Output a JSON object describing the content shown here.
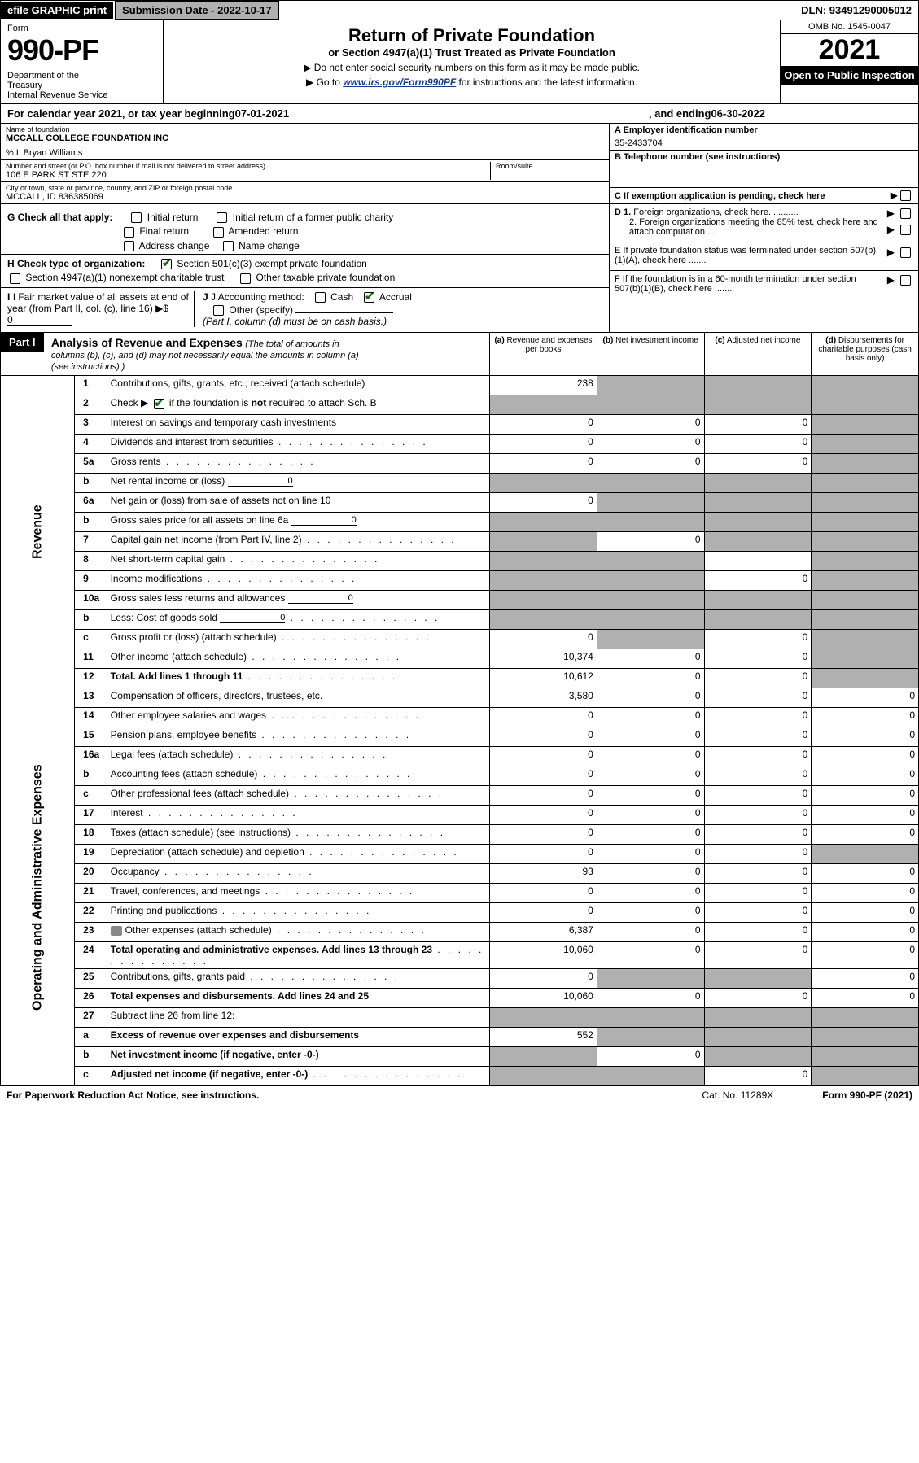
{
  "topbar": {
    "efile": "efile GRAPHIC print",
    "subdate_label": "Submission Date - 2022-10-17",
    "dln": "DLN: 93491290005012"
  },
  "header": {
    "form_label": "Form",
    "form_number": "990-PF",
    "dept": "Department of the Treasury\nInternal Revenue Service",
    "title": "Return of Private Foundation",
    "subtitle": "or Section 4947(a)(1) Trust Treated as Private Foundation",
    "note1": "▶ Do not enter social security numbers on this form as it may be made public.",
    "note2_prefix": "▶ Go to ",
    "note2_link": "www.irs.gov/Form990PF",
    "note2_suffix": " for instructions and the latest information.",
    "omb": "OMB No. 1545-0047",
    "year": "2021",
    "open": "Open to Public Inspection"
  },
  "calendar": {
    "prefix": "For calendar year 2021, or tax year beginning ",
    "begin": "07-01-2021",
    "mid": " , and ending ",
    "end": "06-30-2022"
  },
  "entity": {
    "name_lbl": "Name of foundation",
    "name_val": "MCCALL COLLEGE FOUNDATION INC",
    "care_of": "% L Bryan Williams",
    "street_lbl": "Number and street (or P.O. box number if mail is not delivered to street address)",
    "street_val": "106 E PARK ST STE 220",
    "room_lbl": "Room/suite",
    "city_lbl": "City or town, state or province, country, and ZIP or foreign postal code",
    "city_val": "MCCALL, ID  836385069",
    "a_lbl": "A Employer identification number",
    "a_val": "35-2433704",
    "b_lbl": "B Telephone number (see instructions)",
    "c_lbl": "C If exemption application is pending, check here",
    "d1": "D 1. Foreign organizations, check here............",
    "d2": "2. Foreign organizations meeting the 85% test, check here and attach computation ...",
    "e": "E  If private foundation status was terminated under section 507(b)(1)(A), check here .......",
    "f": "F  If the foundation is in a 60-month termination under section 507(b)(1)(B), check here .......",
    "g_lbl": "G Check all that apply:",
    "g_opts": [
      "Initial return",
      "Initial return of a former public charity",
      "Final return",
      "Amended return",
      "Address change",
      "Name change"
    ],
    "h_lbl": "H Check type of organization:",
    "h_501c3": "Section 501(c)(3) exempt private foundation",
    "h_4947": "Section 4947(a)(1) nonexempt charitable trust",
    "h_other": "Other taxable private foundation",
    "i_lbl": "I Fair market value of all assets at end of year (from Part II, col. (c), line 16)",
    "i_val": "0",
    "j_lbl": "J Accounting method:",
    "j_cash": "Cash",
    "j_accrual": "Accrual",
    "j_other": "Other (specify)",
    "j_note": "(Part I, column (d) must be on cash basis.)"
  },
  "part1": {
    "label": "Part I",
    "title": "Analysis of Revenue and Expenses",
    "note": "(The total of amounts in columns (b), (c), and (d) may not necessarily equal the amounts in column (a) (see instructions).)",
    "col_a": "(a) Revenue and expenses per books",
    "col_b": "(b) Net investment income",
    "col_c": "(c) Adjusted net income",
    "col_d": "(d) Disbursements for charitable purposes (cash basis only)",
    "side_rev": "Revenue",
    "side_exp": "Operating and Administrative Expenses"
  },
  "lines": [
    {
      "no": "1",
      "desc": "Contributions, gifts, grants, etc., received (attach schedule)",
      "a": "238",
      "b": "shade",
      "c": "shade",
      "d": "shade"
    },
    {
      "no": "2",
      "desc": "Check ▶ ☑ if the foundation is not required to attach Sch. B",
      "dots": true,
      "a": "shade",
      "b": "shade",
      "c": "shade",
      "d": "shade",
      "checked": true
    },
    {
      "no": "3",
      "desc": "Interest on savings and temporary cash investments",
      "a": "0",
      "b": "0",
      "c": "0",
      "d": "shade"
    },
    {
      "no": "4",
      "desc": "Dividends and interest from securities",
      "dots": true,
      "a": "0",
      "b": "0",
      "c": "0",
      "d": "shade"
    },
    {
      "no": "5a",
      "desc": "Gross rents",
      "dots": true,
      "a": "0",
      "b": "0",
      "c": "0",
      "d": "shade"
    },
    {
      "no": "b",
      "desc": "Net rental income or (loss)",
      "inline": "0",
      "a": "shade",
      "b": "shade",
      "c": "shade",
      "d": "shade"
    },
    {
      "no": "6a",
      "desc": "Net gain or (loss) from sale of assets not on line 10",
      "a": "0",
      "b": "shade",
      "c": "shade",
      "d": "shade"
    },
    {
      "no": "b",
      "desc": "Gross sales price for all assets on line 6a",
      "inline": "0",
      "a": "shade",
      "b": "shade",
      "c": "shade",
      "d": "shade"
    },
    {
      "no": "7",
      "desc": "Capital gain net income (from Part IV, line 2)",
      "dots": true,
      "a": "shade",
      "b": "0",
      "c": "shade",
      "d": "shade"
    },
    {
      "no": "8",
      "desc": "Net short-term capital gain",
      "dots": true,
      "a": "shade",
      "b": "shade",
      "c": "",
      "d": "shade"
    },
    {
      "no": "9",
      "desc": "Income modifications",
      "dots": true,
      "a": "shade",
      "b": "shade",
      "c": "0",
      "d": "shade"
    },
    {
      "no": "10a",
      "desc": "Gross sales less returns and allowances",
      "inline": "0",
      "a": "shade",
      "b": "shade",
      "c": "shade",
      "d": "shade"
    },
    {
      "no": "b",
      "desc": "Less: Cost of goods sold",
      "dots": true,
      "inline": "0",
      "a": "shade",
      "b": "shade",
      "c": "shade",
      "d": "shade"
    },
    {
      "no": "c",
      "desc": "Gross profit or (loss) (attach schedule)",
      "dots": true,
      "a": "0",
      "b": "shade",
      "c": "0",
      "d": "shade"
    },
    {
      "no": "11",
      "desc": "Other income (attach schedule)",
      "dots": true,
      "a": "10,374",
      "b": "0",
      "c": "0",
      "d": "shade"
    },
    {
      "no": "12",
      "desc": "Total. Add lines 1 through 11",
      "dots": true,
      "bold": true,
      "a": "10,612",
      "b": "0",
      "c": "0",
      "d": "shade"
    },
    {
      "no": "13",
      "desc": "Compensation of officers, directors, trustees, etc.",
      "a": "3,580",
      "b": "0",
      "c": "0",
      "d": "0"
    },
    {
      "no": "14",
      "desc": "Other employee salaries and wages",
      "dots": true,
      "a": "0",
      "b": "0",
      "c": "0",
      "d": "0"
    },
    {
      "no": "15",
      "desc": "Pension plans, employee benefits",
      "dots": true,
      "a": "0",
      "b": "0",
      "c": "0",
      "d": "0"
    },
    {
      "no": "16a",
      "desc": "Legal fees (attach schedule)",
      "dots": true,
      "a": "0",
      "b": "0",
      "c": "0",
      "d": "0"
    },
    {
      "no": "b",
      "desc": "Accounting fees (attach schedule)",
      "dots": true,
      "a": "0",
      "b": "0",
      "c": "0",
      "d": "0"
    },
    {
      "no": "c",
      "desc": "Other professional fees (attach schedule)",
      "dots": true,
      "a": "0",
      "b": "0",
      "c": "0",
      "d": "0"
    },
    {
      "no": "17",
      "desc": "Interest",
      "dots": true,
      "a": "0",
      "b": "0",
      "c": "0",
      "d": "0"
    },
    {
      "no": "18",
      "desc": "Taxes (attach schedule) (see instructions)",
      "dots": true,
      "a": "0",
      "b": "0",
      "c": "0",
      "d": "0"
    },
    {
      "no": "19",
      "desc": "Depreciation (attach schedule) and depletion",
      "dots": true,
      "a": "0",
      "b": "0",
      "c": "0",
      "d": "shade"
    },
    {
      "no": "20",
      "desc": "Occupancy",
      "dots": true,
      "a": "93",
      "b": "0",
      "c": "0",
      "d": "0"
    },
    {
      "no": "21",
      "desc": "Travel, conferences, and meetings",
      "dots": true,
      "a": "0",
      "b": "0",
      "c": "0",
      "d": "0"
    },
    {
      "no": "22",
      "desc": "Printing and publications",
      "dots": true,
      "a": "0",
      "b": "0",
      "c": "0",
      "d": "0"
    },
    {
      "no": "23",
      "desc": "Other expenses (attach schedule)",
      "dots": true,
      "icon": true,
      "a": "6,387",
      "b": "0",
      "c": "0",
      "d": "0"
    },
    {
      "no": "24",
      "desc": "Total operating and administrative expenses. Add lines 13 through 23",
      "dots": true,
      "bold": true,
      "a": "10,060",
      "b": "0",
      "c": "0",
      "d": "0"
    },
    {
      "no": "25",
      "desc": "Contributions, gifts, grants paid",
      "dots": true,
      "a": "0",
      "b": "shade",
      "c": "shade",
      "d": "0"
    },
    {
      "no": "26",
      "desc": "Total expenses and disbursements. Add lines 24 and 25",
      "bold": true,
      "a": "10,060",
      "b": "0",
      "c": "0",
      "d": "0"
    },
    {
      "no": "27",
      "desc": "Subtract line 26 from line 12:",
      "a": "shade",
      "b": "shade",
      "c": "shade",
      "d": "shade"
    },
    {
      "no": "a",
      "desc": "Excess of revenue over expenses and disbursements",
      "bold": true,
      "a": "552",
      "b": "shade",
      "c": "shade",
      "d": "shade"
    },
    {
      "no": "b",
      "desc": "Net investment income (if negative, enter -0-)",
      "bold": true,
      "a": "shade",
      "b": "0",
      "c": "shade",
      "d": "shade"
    },
    {
      "no": "c",
      "desc": "Adjusted net income (if negative, enter -0-)",
      "dots": true,
      "bold": true,
      "a": "shade",
      "b": "shade",
      "c": "0",
      "d": "shade"
    }
  ],
  "footer": {
    "left": "For Paperwork Reduction Act Notice, see instructions.",
    "mid": "Cat. No. 11289X",
    "right": "Form 990-PF (2021)"
  },
  "colors": {
    "shade": "#b0b0b0",
    "black": "#000000",
    "link": "#1a3a8a",
    "check": "#1a6b1a"
  }
}
